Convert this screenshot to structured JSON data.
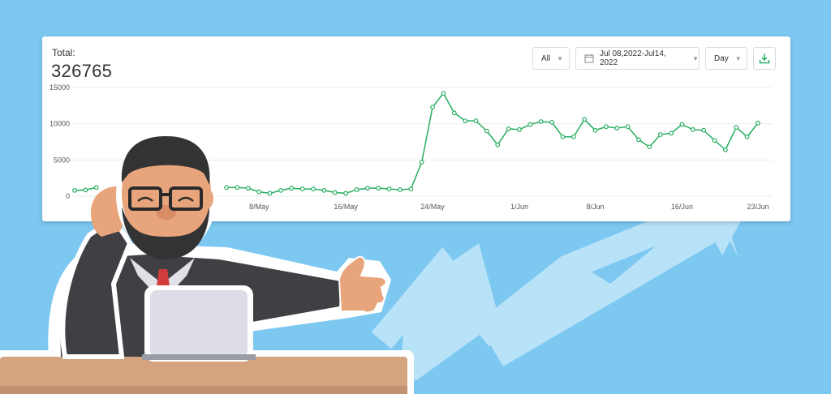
{
  "colors": {
    "background": "#7dc8f0",
    "arrow": "#b8e2f8",
    "line": "#27ae60",
    "card": "#ffffff"
  },
  "header": {
    "total_label": "Total:",
    "total_value": "326765"
  },
  "controls": {
    "scope": "All",
    "date_range": "Jul 08,2022-Jul14, 2022",
    "granularity": "Day",
    "calendar_icon": "calendar-icon",
    "download_icon": "download-icon"
  },
  "chart_data": {
    "type": "line",
    "grid": "horizontal",
    "ylim": [
      0,
      15000
    ],
    "yticks": [
      "15000",
      "10000",
      "5000",
      "0"
    ],
    "ytick_values": [
      15000,
      10000,
      5000,
      0
    ],
    "xticks": [
      "8/May",
      "16/May",
      "24/May",
      "1/Jun",
      "8/Jun",
      "16/Jun",
      "23/Jun"
    ],
    "xtick_index": [
      17,
      25,
      33,
      41,
      48,
      56,
      63
    ],
    "x_count": 64,
    "series": [
      {
        "values": [
          800,
          850,
          1200,
          null,
          null,
          null,
          null,
          null,
          null,
          null,
          null,
          null,
          null,
          null,
          1200,
          1200,
          1100,
          600,
          400,
          800,
          1100,
          1000,
          1000,
          800,
          500,
          400,
          900,
          1100,
          1100,
          1000,
          900,
          1000,
          4700,
          12300,
          14200,
          11500,
          10400,
          10400,
          9000,
          7100,
          9300,
          9200,
          9900,
          10300,
          10200,
          8200,
          8200,
          10600,
          9100,
          9600,
          9400,
          9600,
          7800,
          6800,
          8500,
          8700,
          9900,
          9200,
          9100,
          7700,
          6400,
          9500,
          8200,
          10100
        ]
      }
    ]
  }
}
